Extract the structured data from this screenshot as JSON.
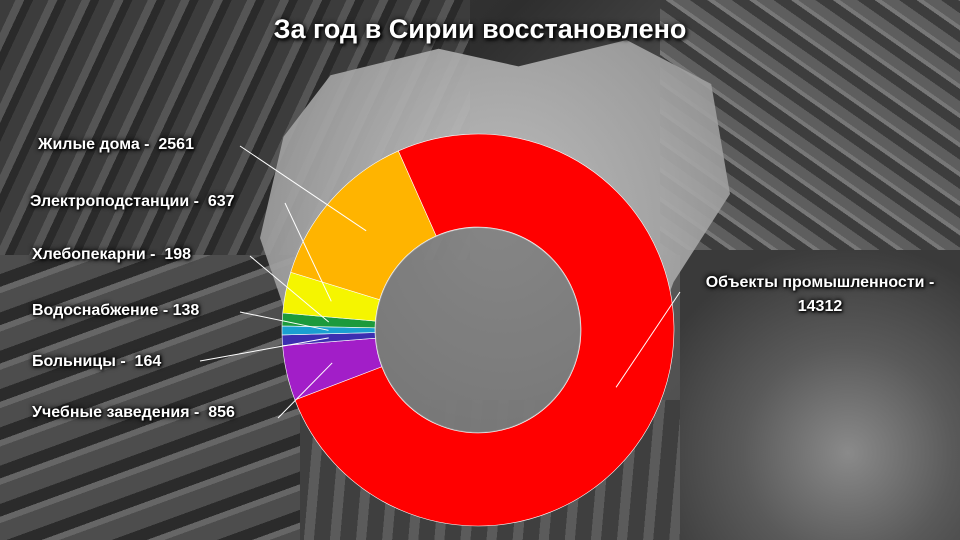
{
  "title": "За год в Сирии восстановлено",
  "chart_data": {
    "type": "pie",
    "title": "За год в Сирии восстановлено",
    "donut": true,
    "slices": [
      {
        "name": "Объекты промышленности",
        "value": 14312,
        "color": "#ff0000"
      },
      {
        "name": "Учебные заведения",
        "value": 856,
        "color": "#a21ec8"
      },
      {
        "name": "Больницы",
        "value": 164,
        "color": "#3c2fb0"
      },
      {
        "name": "Водоснабжение",
        "value": 138,
        "color": "#1aa0d0"
      },
      {
        "name": "Хлебопекарни",
        "value": 198,
        "color": "#1c9a3c"
      },
      {
        "name": "Электроподстанции",
        "value": 637,
        "color": "#f5f500"
      },
      {
        "name": "Жилые дома",
        "value": 2561,
        "color": "#ffb400"
      }
    ]
  },
  "labels": {
    "homes": "Жилые дома -  2561",
    "substations": "Электроподстанции -  637",
    "bakeries": "Хлебопекарни -  198",
    "water": "Водоснабжение - 138",
    "hospitals": "Больницы -  164",
    "schools": "Учебные заведения -  856",
    "industry": "Объекты промышленности - 14312"
  }
}
